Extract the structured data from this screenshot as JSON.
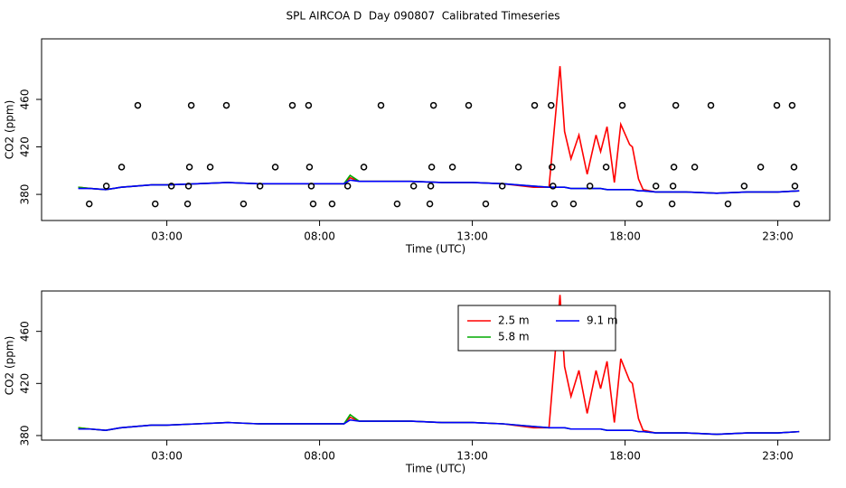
{
  "title": "SPL AIRCOA D  Day 090807  Calibrated Timeseries",
  "chart_data": [
    {
      "type": "line",
      "xlabel": "Time (UTC)",
      "ylabel": "CO2 (ppm)",
      "xlim": [
        -1.1,
        24.7
      ],
      "ylim": [
        358,
        511
      ],
      "xticks": [
        {
          "value": 3,
          "label": "03:00"
        },
        {
          "value": 8,
          "label": "08:00"
        },
        {
          "value": 13,
          "label": "13:00"
        },
        {
          "value": 18,
          "label": "18:00"
        },
        {
          "value": 23,
          "label": "23:00"
        }
      ],
      "yticks": [
        380,
        420,
        460
      ],
      "x": [
        0.1,
        0.5,
        1,
        1.5,
        2.5,
        3,
        4,
        5,
        6,
        7,
        8,
        8.8,
        9.0,
        9.3,
        10,
        11,
        12,
        13,
        14,
        15,
        15.51,
        15.87,
        16.02,
        16.23,
        16.49,
        16.76,
        17.05,
        17.2,
        17.41,
        17.65,
        17.86,
        18.15,
        18.24,
        18.44,
        18.59,
        19,
        20,
        21,
        22,
        23,
        23.7
      ],
      "series": [
        {
          "color": "#ff0000",
          "values": [
            386,
            385,
            384,
            386,
            388,
            388,
            389,
            390,
            389,
            389,
            389,
            389,
            394,
            391,
            391,
            391,
            390,
            390,
            389,
            386,
            386,
            488,
            433,
            410,
            430,
            397,
            430,
            416,
            437,
            390,
            439,
            422,
            420,
            393,
            384,
            382,
            382,
            381,
            382,
            382,
            383
          ]
        },
        {
          "color": "#00aa00",
          "values": [
            386,
            385,
            384,
            386,
            388,
            388,
            389,
            390,
            389,
            389,
            389,
            389,
            396,
            391,
            391,
            391,
            390,
            390,
            389,
            387,
            386,
            386,
            386,
            385,
            385,
            385,
            385,
            385,
            384,
            384,
            384,
            384,
            384,
            383,
            383,
            382,
            382,
            381,
            382,
            382,
            383
          ]
        },
        {
          "color": "#0000ff",
          "values": [
            385,
            385,
            384,
            386,
            388,
            388,
            389,
            390,
            389,
            389,
            389,
            389,
            392,
            391,
            391,
            391,
            390,
            390,
            389,
            387,
            386,
            386,
            386,
            385,
            385,
            385,
            385,
            385,
            384,
            384,
            384,
            384,
            384,
            383,
            383,
            382,
            382,
            381,
            382,
            382,
            383
          ]
        },
        {
          "type": "scatter",
          "color": "#000000",
          "x": [
            0.46,
            1.02,
            1.52,
            2.05,
            2.62,
            3.15,
            3.68,
            3.71,
            3.74,
            3.8,
            4.42,
            4.95,
            5.51,
            6.05,
            6.55,
            7.11,
            7.64,
            7.67,
            7.73,
            7.79,
            8.41,
            8.92,
            9.45,
            10.01,
            10.54,
            11.08,
            11.61,
            11.64,
            11.67,
            11.73,
            12.35,
            12.88,
            13.44,
            13.98,
            14.51,
            15.04,
            15.58,
            15.61,
            15.64,
            15.69,
            16.31,
            16.85,
            17.38,
            17.91,
            18.47,
            19.01,
            19.54,
            19.57,
            19.6,
            19.66,
            20.28,
            20.81,
            21.37,
            21.9,
            22.44,
            22.97,
            23.47,
            23.53,
            23.56,
            23.62
          ],
          "values": [
            372,
            387,
            403,
            455,
            372,
            387,
            372,
            387,
            403,
            455,
            403,
            455,
            372,
            387,
            403,
            455,
            455,
            403,
            387,
            372,
            372,
            387,
            403,
            455,
            372,
            387,
            372,
            387,
            403,
            455,
            403,
            455,
            372,
            387,
            403,
            455,
            455,
            403,
            387,
            372,
            372,
            387,
            403,
            455,
            372,
            387,
            372,
            387,
            403,
            455,
            403,
            455,
            372,
            387,
            403,
            455,
            455,
            403,
            387,
            372
          ]
        }
      ]
    },
    {
      "type": "line",
      "xlabel": "Time (UTC)",
      "ylabel": "CO2 (ppm)",
      "xlim": [
        -1.1,
        24.7
      ],
      "ylim": [
        376.5,
        491
      ],
      "legend": "top",
      "xticks": [
        {
          "value": 3,
          "label": "03:00"
        },
        {
          "value": 8,
          "label": "08:00"
        },
        {
          "value": 13,
          "label": "13:00"
        },
        {
          "value": 18,
          "label": "18:00"
        },
        {
          "value": 23,
          "label": "23:00"
        }
      ],
      "yticks": [
        380,
        420,
        460
      ],
      "x": [
        0.1,
        0.5,
        1,
        1.5,
        2.5,
        3,
        4,
        5,
        6,
        7,
        8,
        8.8,
        9.0,
        9.3,
        10,
        11,
        12,
        13,
        14,
        15,
        15.51,
        15.87,
        16.02,
        16.23,
        16.49,
        16.76,
        17.05,
        17.2,
        17.41,
        17.65,
        17.86,
        18.15,
        18.24,
        18.44,
        18.59,
        19,
        20,
        21,
        22,
        23,
        23.7
      ],
      "series": [
        {
          "name": "2.5 m",
          "color": "#ff0000",
          "values": [
            386,
            385,
            384,
            386,
            388,
            388,
            389,
            390,
            389,
            389,
            389,
            389,
            394,
            391,
            391,
            391,
            390,
            390,
            389,
            386,
            386,
            488,
            433,
            410,
            430,
            397,
            430,
            416,
            437,
            390,
            439,
            422,
            420,
            393,
            384,
            382,
            382,
            381,
            382,
            382,
            383
          ]
        },
        {
          "name": "5.8 m",
          "color": "#00aa00",
          "values": [
            386,
            385,
            384,
            386,
            388,
            388,
            389,
            390,
            389,
            389,
            389,
            389,
            396,
            391,
            391,
            391,
            390,
            390,
            389,
            387,
            386,
            386,
            386,
            385,
            385,
            385,
            385,
            385,
            384,
            384,
            384,
            384,
            384,
            383,
            383,
            382,
            382,
            381,
            382,
            382,
            383
          ]
        },
        {
          "name": "9.1 m",
          "color": "#0000ff",
          "values": [
            385,
            385,
            384,
            386,
            388,
            388,
            389,
            390,
            389,
            389,
            389,
            389,
            392,
            391,
            391,
            391,
            390,
            390,
            389,
            387,
            386,
            386,
            386,
            385,
            385,
            385,
            385,
            385,
            384,
            384,
            384,
            384,
            384,
            383,
            383,
            382,
            382,
            381,
            382,
            382,
            383
          ]
        }
      ]
    }
  ]
}
